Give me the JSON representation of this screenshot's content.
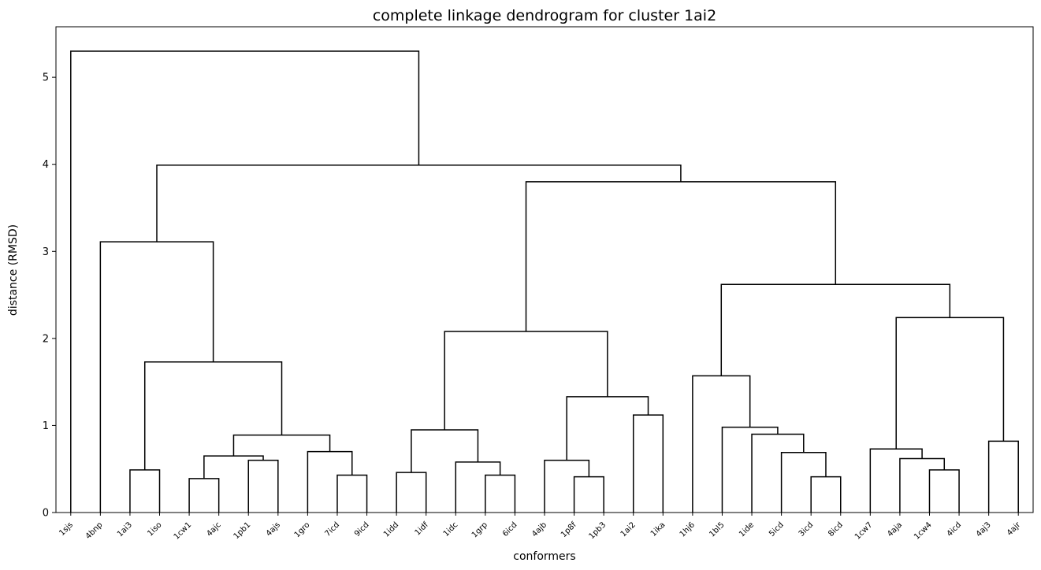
{
  "chart_data": {
    "type": "dendrogram",
    "title": "complete linkage dendrogram for cluster 1ai2",
    "xlabel": "conformers",
    "ylabel": "distance (RMSD)",
    "ylim": [
      0,
      5.58
    ],
    "yticks": [
      0,
      1,
      2,
      3,
      4,
      5
    ],
    "grid": false,
    "leaves": [
      "1sjs",
      "4bnp",
      "1ai3",
      "1iso",
      "1cw1",
      "4ajc",
      "1pb1",
      "4ajs",
      "1gro",
      "7icd",
      "9icd",
      "1idd",
      "1idf",
      "1idc",
      "1grp",
      "6icd",
      "4ajb",
      "1p8f",
      "1pb3",
      "1ai2",
      "1ika",
      "1hj6",
      "1bl5",
      "1ide",
      "5icd",
      "3icd",
      "8icd",
      "1cw7",
      "4aja",
      "1cw4",
      "4icd",
      "4aj3",
      "4ajr"
    ],
    "merges": [
      {
        "a": "1ai3",
        "b": "1iso",
        "height": 0.49
      },
      {
        "a": "1cw1",
        "b": "4ajc",
        "height": 0.39
      },
      {
        "a": "1pb1",
        "b": "4ajs",
        "height": 0.6
      },
      {
        "a": "(1cw1,4ajc)",
        "b": "(1pb1,4ajs)",
        "height": 0.65
      },
      {
        "a": "7icd",
        "b": "9icd",
        "height": 0.43
      },
      {
        "a": "1gro",
        "b": "(7icd,9icd)",
        "height": 0.7
      },
      {
        "a": "(1cw1,4ajc,1pb1,4ajs)",
        "b": "(1gro,7icd,9icd)",
        "height": 0.89
      },
      {
        "a": "(1ai3,1iso)",
        "b": "(1cw1..9icd)",
        "height": 1.73
      },
      {
        "a": "4bnp",
        "b": "(1ai3..9icd)",
        "height": 3.11
      },
      {
        "a": "1idd",
        "b": "1idf",
        "height": 0.46
      },
      {
        "a": "1grp",
        "b": "6icd",
        "height": 0.43
      },
      {
        "a": "1idc",
        "b": "(1grp,6icd)",
        "height": 0.58
      },
      {
        "a": "(1idd,1idf)",
        "b": "(1idc,1grp,6icd)",
        "height": 0.95
      },
      {
        "a": "1p8f",
        "b": "1pb3",
        "height": 0.41
      },
      {
        "a": "4ajb",
        "b": "(1p8f,1pb3)",
        "height": 0.6
      },
      {
        "a": "1ai2",
        "b": "1ika",
        "height": 1.12
      },
      {
        "a": "(4ajb,1p8f,1pb3)",
        "b": "(1ai2,1ika)",
        "height": 1.33
      },
      {
        "a": "(1idd..6icd)",
        "b": "(4ajb..1ika)",
        "height": 2.08
      },
      {
        "a": "3icd",
        "b": "8icd",
        "height": 0.41
      },
      {
        "a": "5icd",
        "b": "(3icd,8icd)",
        "height": 0.69
      },
      {
        "a": "1ide",
        "b": "(5icd,3icd,8icd)",
        "height": 0.9
      },
      {
        "a": "1bl5",
        "b": "(1ide..8icd)",
        "height": 0.98
      },
      {
        "a": "1hj6",
        "b": "(1bl5..8icd)",
        "height": 1.57
      },
      {
        "a": "1cw4",
        "b": "4icd",
        "height": 0.49
      },
      {
        "a": "4aja",
        "b": "(1cw4,4icd)",
        "height": 0.62
      },
      {
        "a": "1cw7",
        "b": "(4aja,1cw4,4icd)",
        "height": 0.73
      },
      {
        "a": "4aj3",
        "b": "4ajr",
        "height": 0.82
      },
      {
        "a": "(1cw7..4icd)",
        "b": "(4aj3,4ajr)",
        "height": 2.24
      },
      {
        "a": "(1hj6..8icd)",
        "b": "(1cw7..4ajr)",
        "height": 2.62
      },
      {
        "a": "(1idd..1ika)",
        "b": "(1hj6..4ajr)",
        "height": 3.8
      },
      {
        "a": "(4bnp..9icd)",
        "b": "(1idd..4ajr)",
        "height": 3.99
      },
      {
        "a": "1sjs",
        "b": "(4bnp..4ajr)",
        "height": 5.3
      }
    ]
  }
}
